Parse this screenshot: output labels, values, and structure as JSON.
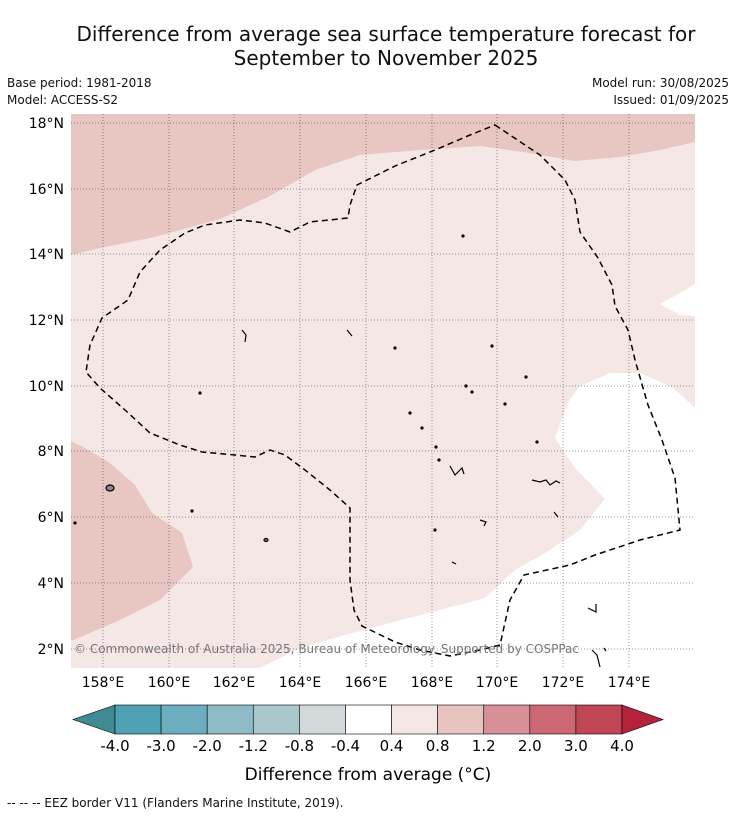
{
  "title_line1": "Difference from average sea surface temperature forecast for",
  "title_line2": "September to November 2025",
  "base_period": "Base period: 1981-2018",
  "model": "Model: ACCESS-S2",
  "model_run": "Model run: 30/08/2025",
  "issued": "Issued: 01/09/2025",
  "copyright": "© Commonwealth of Australia 2025, Bureau of Meteorology. Supported by COSPPac",
  "lat_labels": [
    "18°N",
    "16°N",
    "14°N",
    "12°N",
    "10°N",
    "8°N",
    "6°N",
    "4°N",
    "2°N"
  ],
  "lon_labels": [
    "158°E",
    "160°E",
    "162°E",
    "164°E",
    "166°E",
    "168°E",
    "170°E",
    "172°E",
    "174°E"
  ],
  "colorbar": {
    "colors": [
      "#4fa2b4",
      "#6caebf",
      "#8ebbc6",
      "#aac8cc",
      "#d3d9db",
      "#ffffff",
      "#f4e6e5",
      "#e8c4c0",
      "#d98f97",
      "#cb6873",
      "#c04656"
    ],
    "under_color": "#3f8a93",
    "over_color": "#b5223c",
    "tick_labels": [
      "-4.0",
      "-3.0",
      "-2.0",
      "-1.2",
      "-0.8",
      "-0.4",
      "0.4",
      "0.8",
      "1.2",
      "2.0",
      "3.0",
      "4.0"
    ],
    "label": "Difference from average (°C)"
  },
  "legend_eez": "--  --  -- EEZ border V11 (Flanders Marine Institute, 2019)."
}
